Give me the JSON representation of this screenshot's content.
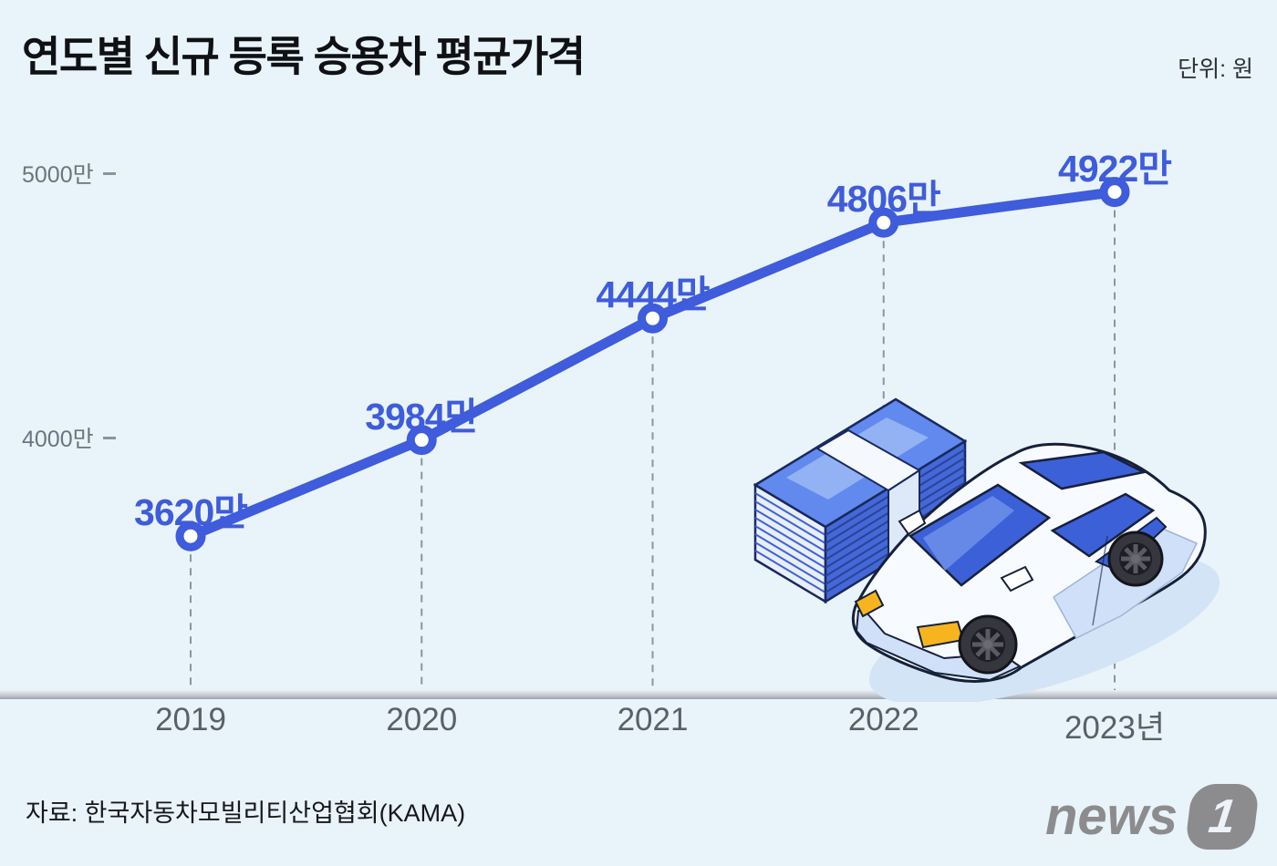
{
  "title": "연도별 신규 등록 승용차 평균가격",
  "unit_label": "단위: 원",
  "source": "자료: 한국자동차모빌리티산업협회(KAMA)",
  "logo": {
    "text": "news",
    "badge": "1"
  },
  "colors": {
    "background": "#E9F3FA",
    "accent_blue": "#3E5CDB",
    "marker_fill": "#FFFFFF",
    "dashed_gray": "#8D949E",
    "axis_gray": "#AEB4BE",
    "ylabel_gray": "#6A7580",
    "xlabel_gray": "#596069",
    "logo_gray": "#8C8C8F",
    "headlight_yellow": "#F6B51E"
  },
  "illustration": {
    "items": [
      "money-stack-icon",
      "car-icon"
    ]
  },
  "chart_data": {
    "type": "line",
    "title": "연도별 신규 등록 승용차 평균가격",
    "unit": "원",
    "categories": [
      "2019",
      "2020",
      "2021",
      "2022",
      "2023년"
    ],
    "values": [
      3620,
      3984,
      4444,
      4806,
      4922
    ],
    "values_unit": "만원",
    "point_labels": [
      "3620만",
      "3984만",
      "4444만",
      "4806만",
      "4922만"
    ],
    "y_axis": {
      "ticks": [
        {
          "label": "5000만",
          "value": 5000
        },
        {
          "label": "4000만",
          "value": 4000
        }
      ]
    },
    "ylim": [
      3400,
      5250
    ],
    "grid": "vertical dashed droplines from each point to x-axis",
    "legend": "none"
  }
}
